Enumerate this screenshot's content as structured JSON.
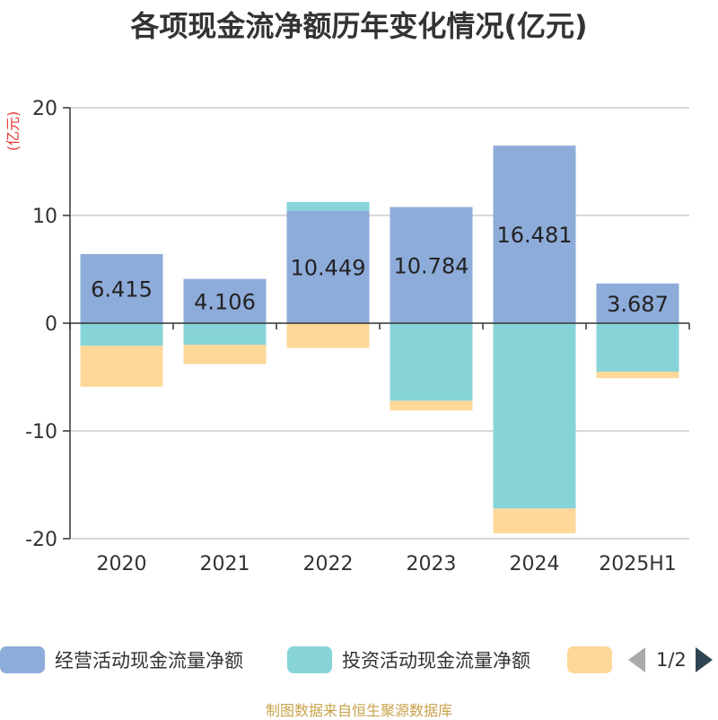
{
  "chart_data": {
    "type": "bar",
    "stacked": true,
    "title": "各项现金流净额历年变化情况(亿元)",
    "ylabel": "(亿元)",
    "ylim": [
      -20,
      20
    ],
    "yticks": [
      20,
      10,
      0,
      -10,
      -20
    ],
    "grid": true,
    "categories": [
      "2020",
      "2021",
      "2022",
      "2023",
      "2024",
      "2025H1"
    ],
    "series": [
      {
        "name": "经营活动现金流量净额",
        "color": "#8eacda",
        "values": [
          6.415,
          4.106,
          10.449,
          10.784,
          16.481,
          3.687
        ],
        "labels": [
          "6.415",
          "4.106",
          "10.449",
          "10.784",
          "16.481",
          "3.687"
        ]
      },
      {
        "name": "投资活动现金流量净额",
        "color": "#87d4d8",
        "values": [
          -2.1,
          -2.0,
          0.8,
          -7.2,
          -17.2,
          -4.5
        ]
      },
      {
        "name": "",
        "color": "#fdd899",
        "values": [
          -3.8,
          -1.8,
          -2.3,
          -0.9,
          -2.3,
          -0.6
        ]
      }
    ],
    "legend_position": "bottom"
  },
  "legend": {
    "page": "1/2"
  },
  "source": "制图数据来自恒生聚源数据库"
}
